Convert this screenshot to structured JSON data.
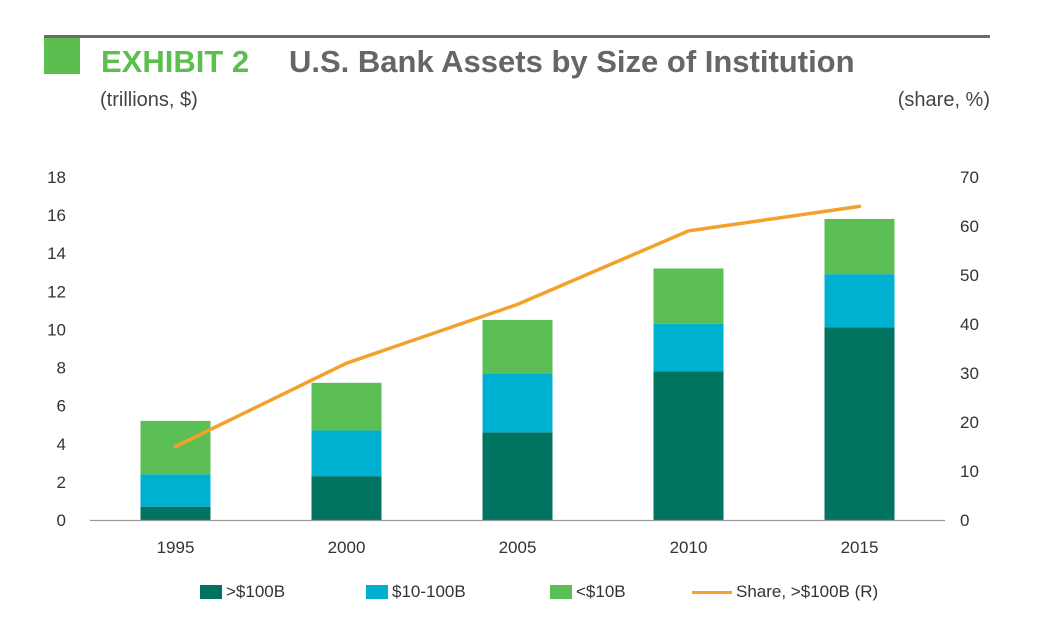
{
  "header": {
    "exhibit": "EXHIBIT 2",
    "title": "U.S. Bank Assets by Size of Institution",
    "left_unit": "(trillions, $)",
    "right_unit": "(share, %)"
  },
  "colors": {
    "accent_green": "#5bbf4f",
    "large": "#007361",
    "mid": "#00b0d0",
    "small": "#5cbf56",
    "line": "#f4a12c",
    "axis": "#999999"
  },
  "chart_data": {
    "type": "bar",
    "stacked": true,
    "categories": [
      "1995",
      "2000",
      "2005",
      "2010",
      "2015"
    ],
    "series": [
      {
        "name": ">$100B",
        "type": "bar",
        "axis": "left",
        "values": [
          0.7,
          2.3,
          4.6,
          7.8,
          10.1
        ]
      },
      {
        "name": "$10-100B",
        "type": "bar",
        "axis": "left",
        "values": [
          1.7,
          2.4,
          3.1,
          2.5,
          2.8
        ]
      },
      {
        "name": "<$10B",
        "type": "bar",
        "axis": "left",
        "values": [
          2.8,
          2.5,
          2.8,
          2.9,
          2.9
        ]
      },
      {
        "name": "Share, >$100B (R)",
        "type": "line",
        "axis": "right",
        "values": [
          15,
          32,
          44,
          59,
          64
        ]
      }
    ],
    "y_left": {
      "min": 0,
      "max": 18,
      "ticks": [
        0,
        2,
        4,
        6,
        8,
        10,
        12,
        14,
        16,
        18
      ]
    },
    "y_right": {
      "min": 0,
      "max": 70,
      "ticks": [
        0,
        10,
        20,
        30,
        40,
        50,
        60,
        70
      ]
    },
    "grid": false,
    "legend_position": "bottom"
  }
}
